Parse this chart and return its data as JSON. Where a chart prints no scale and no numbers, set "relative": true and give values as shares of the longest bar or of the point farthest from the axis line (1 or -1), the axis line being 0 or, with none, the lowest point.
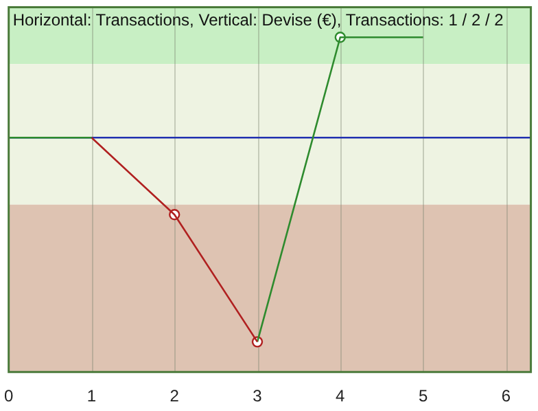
{
  "chart_data": {
    "type": "line",
    "title": "Horizontal: Transactions, Vertical: Devise (€), Transactions: 1 / 2 / 2",
    "relative": true,
    "series": [
      {
        "color": "#2e8b2e",
        "x": [
          0,
          1
        ],
        "values": [
          0.7,
          0.7
        ],
        "marker": "none"
      },
      {
        "color": "#b02020",
        "x": [
          1,
          2,
          3
        ],
        "values": [
          0.7,
          0.47,
          0.09
        ],
        "marker": "none"
      },
      {
        "color": "#2e8b2e",
        "x": [
          3,
          4,
          5
        ],
        "values": [
          0.09,
          1,
          1
        ],
        "marker": "none"
      },
      {
        "type": "scatter",
        "color": "#b02020",
        "x": [
          2,
          3
        ],
        "values": [
          0.47,
          0.09
        ],
        "marker": "circle"
      },
      {
        "type": "scatter",
        "color": "#2e8b2e",
        "x": [
          4
        ],
        "values": [
          1
        ],
        "marker": "circle"
      }
    ],
    "xlim": [
      0,
      6.3
    ],
    "xticks": [
      0,
      1,
      2,
      3,
      4,
      5,
      6
    ],
    "ref_lines": [
      {
        "axis": "y",
        "value": 0.7,
        "color": "#2030b0"
      }
    ],
    "bands": [
      {
        "axis": "y",
        "from": 0.92,
        "to": 1.09,
        "color": "#c8efc4"
      },
      {
        "axis": "y",
        "from": 0.5,
        "to": 0.92,
        "color": "#eef3e2"
      },
      {
        "axis": "y",
        "from": 0,
        "to": 0.5,
        "color": "#dec3b2"
      }
    ],
    "grid": "x",
    "legend": false,
    "tick_labels": "x"
  }
}
